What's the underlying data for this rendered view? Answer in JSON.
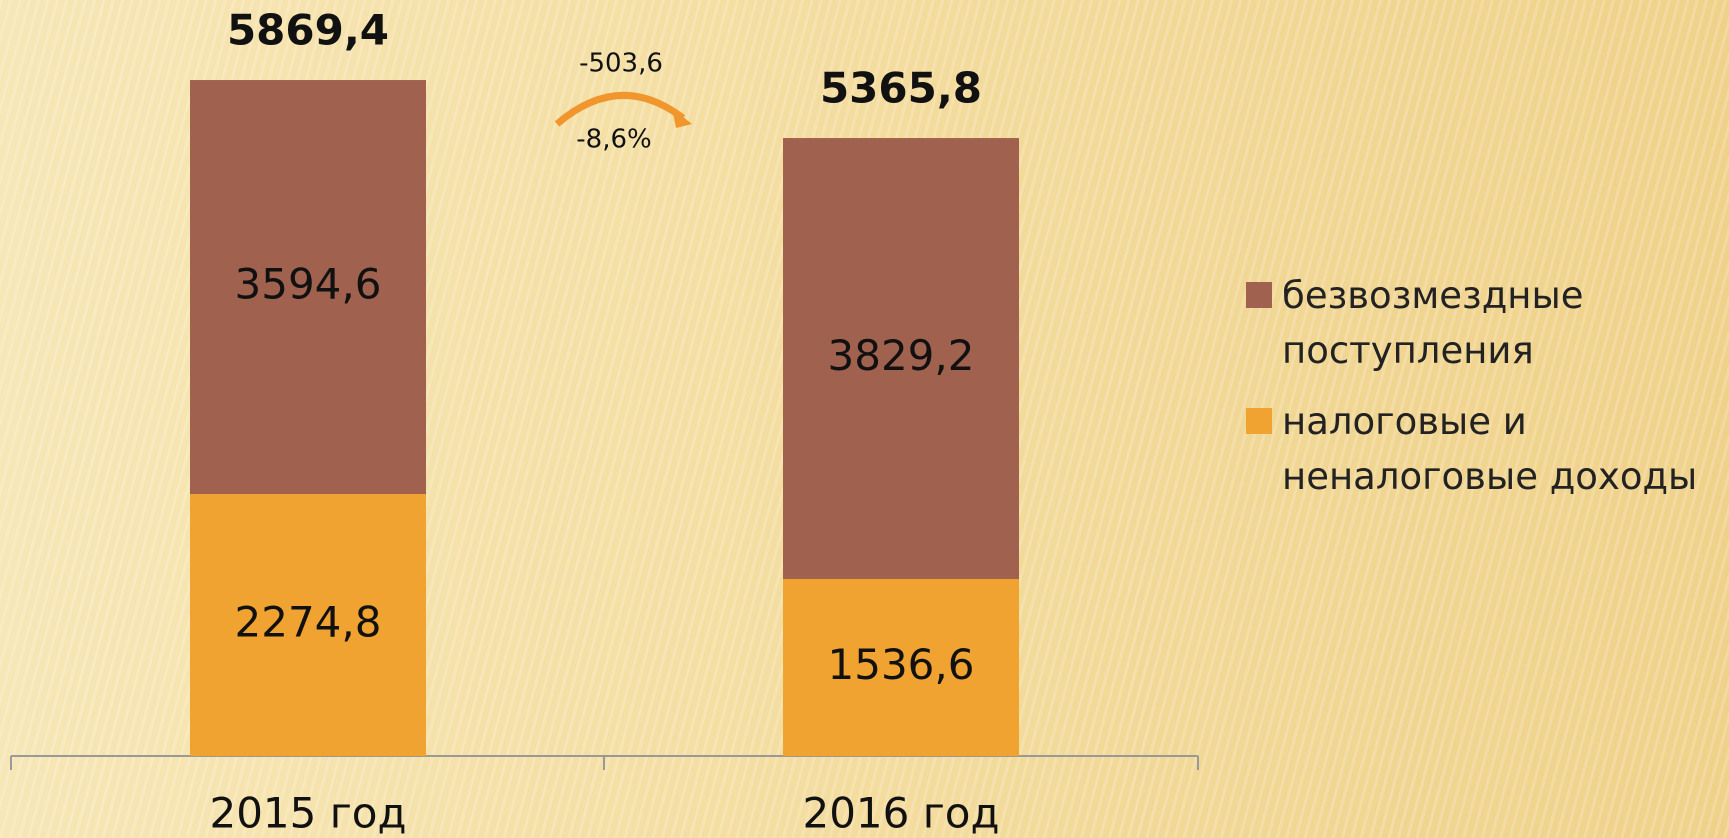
{
  "chart_data": {
    "type": "stacked_bar",
    "categories": [
      "2015 год",
      "2016 год"
    ],
    "series": [
      {
        "name": "налоговые и неналоговые доходы",
        "color": "#f0a330",
        "values": [
          2274.8,
          1536.6
        ],
        "value_labels": [
          "2274,8",
          "1536,6"
        ]
      },
      {
        "name": "безвозмездные поступления",
        "color": "#a0614e",
        "values": [
          3594.6,
          3829.2
        ],
        "value_labels": [
          "3594,6",
          "3829,2"
        ]
      }
    ],
    "totals": {
      "values": [
        5869.4,
        5365.8
      ],
      "value_labels": [
        "5869,4",
        "5365,8"
      ]
    },
    "annotations": [
      "-503,6",
      "-8,6%"
    ],
    "ylim": [
      0,
      6000
    ]
  }
}
